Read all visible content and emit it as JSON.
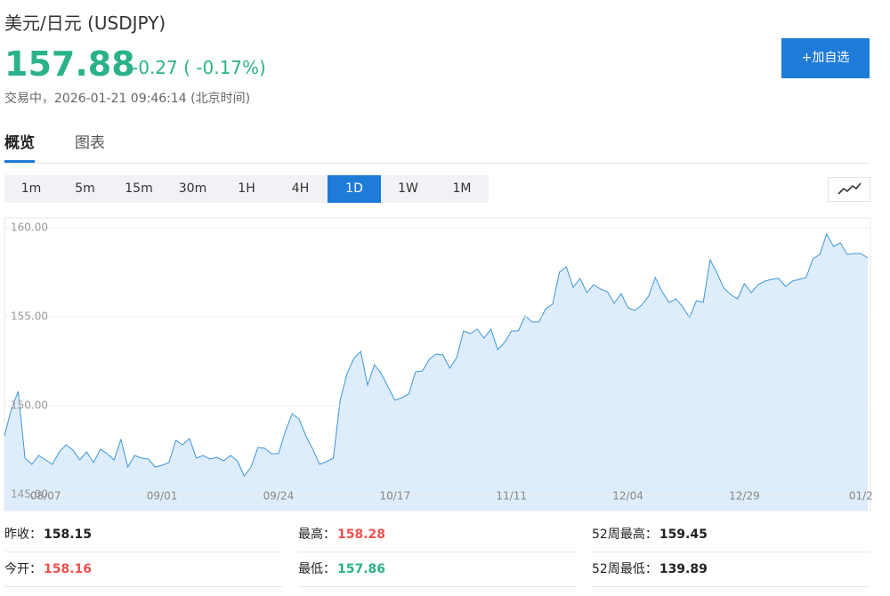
{
  "header": {
    "title": "美元/日元  (USDJPY)",
    "price": "157.88",
    "change": "-0.27 ( -0.17%)",
    "status": "交易中，2026-01-21 09:46:14 (北京时间)",
    "button": "+加自选"
  },
  "tabs": {
    "items": [
      "概览",
      "图表"
    ],
    "active": 0
  },
  "intervals": {
    "items": [
      "1m",
      "5m",
      "15m",
      "30m",
      "1H",
      "4H",
      "1D",
      "1W",
      "1M"
    ],
    "active": 6
  },
  "chart_data": {
    "type": "area",
    "color": "#3d96d8",
    "fill": "#deedfb",
    "grid": true,
    "ylim": [
      144.1,
      160.55
    ],
    "yticks": [
      {
        "value": 145,
        "label": "145.00"
      },
      {
        "value": 150,
        "label": "150.00"
      },
      {
        "value": 155,
        "label": "155.00"
      },
      {
        "value": 160,
        "label": "160.00"
      }
    ],
    "categories": [
      null,
      null,
      null,
      null,
      null,
      null,
      "08/07",
      null,
      null,
      null,
      null,
      null,
      null,
      null,
      null,
      null,
      null,
      null,
      null,
      null,
      null,
      null,
      null,
      "09/01",
      null,
      null,
      null,
      null,
      null,
      null,
      null,
      null,
      null,
      null,
      null,
      null,
      null,
      null,
      null,
      null,
      "09/24",
      null,
      null,
      null,
      null,
      null,
      null,
      null,
      null,
      null,
      null,
      null,
      null,
      null,
      null,
      null,
      null,
      "10/17",
      null,
      null,
      null,
      null,
      null,
      null,
      null,
      null,
      null,
      null,
      null,
      null,
      null,
      null,
      null,
      null,
      "11/11",
      null,
      null,
      null,
      null,
      null,
      null,
      null,
      null,
      null,
      null,
      null,
      null,
      null,
      null,
      null,
      null,
      "12/04",
      null,
      null,
      null,
      null,
      null,
      null,
      null,
      null,
      null,
      null,
      null,
      null,
      null,
      null,
      null,
      null,
      "12/29",
      null,
      null,
      null,
      null,
      null,
      null,
      null,
      null,
      null,
      null,
      null,
      null,
      null,
      null,
      null,
      null,
      "01/2",
      null
    ],
    "values": [
      148.3,
      149.8,
      150.8,
      147.05,
      146.7,
      147.2,
      146.95,
      146.7,
      147.4,
      147.8,
      147.5,
      146.95,
      147.4,
      146.8,
      147.55,
      147.3,
      146.95,
      148.1,
      146.55,
      147.2,
      147.05,
      147.0,
      146.55,
      146.65,
      146.8,
      148.05,
      147.8,
      148.15,
      147.05,
      147.2,
      147.0,
      147.1,
      146.9,
      147.2,
      146.9,
      146.05,
      146.55,
      147.65,
      147.6,
      147.3,
      147.3,
      148.55,
      149.55,
      149.25,
      148.3,
      147.55,
      146.7,
      146.85,
      147.05,
      150.3,
      151.8,
      152.65,
      153.05,
      151.15,
      152.3,
      151.8,
      151.05,
      150.3,
      150.45,
      150.65,
      151.9,
      151.95,
      152.6,
      152.9,
      152.85,
      152.1,
      152.7,
      154.2,
      154.05,
      154.3,
      153.8,
      154.3,
      153.15,
      153.55,
      154.2,
      154.2,
      155.05,
      154.7,
      154.7,
      155.45,
      155.7,
      157.5,
      157.8,
      156.65,
      157.15,
      156.35,
      156.8,
      156.55,
      156.4,
      155.75,
      156.3,
      155.5,
      155.35,
      155.65,
      156.15,
      157.2,
      156.4,
      155.8,
      156.0,
      155.55,
      154.95,
      155.9,
      155.8,
      158.2,
      157.45,
      156.6,
      156.25,
      156.0,
      156.85,
      156.35,
      156.8,
      157.0,
      157.1,
      157.15,
      156.7,
      157.0,
      157.1,
      157.2,
      158.25,
      158.5,
      159.65,
      158.95,
      159.15,
      158.5,
      158.55,
      158.55,
      158.3
    ]
  },
  "stats": [
    [
      {
        "label": "昨收：",
        "value": "158.15",
        "color": "#222222"
      },
      {
        "label": "最高：",
        "value": "158.28",
        "color": "#f0524f"
      },
      {
        "label": "52周最高：",
        "value": "159.45",
        "color": "#222222"
      }
    ],
    [
      {
        "label": "今开：",
        "value": "158.16",
        "color": "#f0524f"
      },
      {
        "label": "最低：",
        "value": "157.86",
        "color": "#2bb28a"
      },
      {
        "label": "52周最低：",
        "value": "139.89",
        "color": "#222222"
      }
    ]
  ]
}
